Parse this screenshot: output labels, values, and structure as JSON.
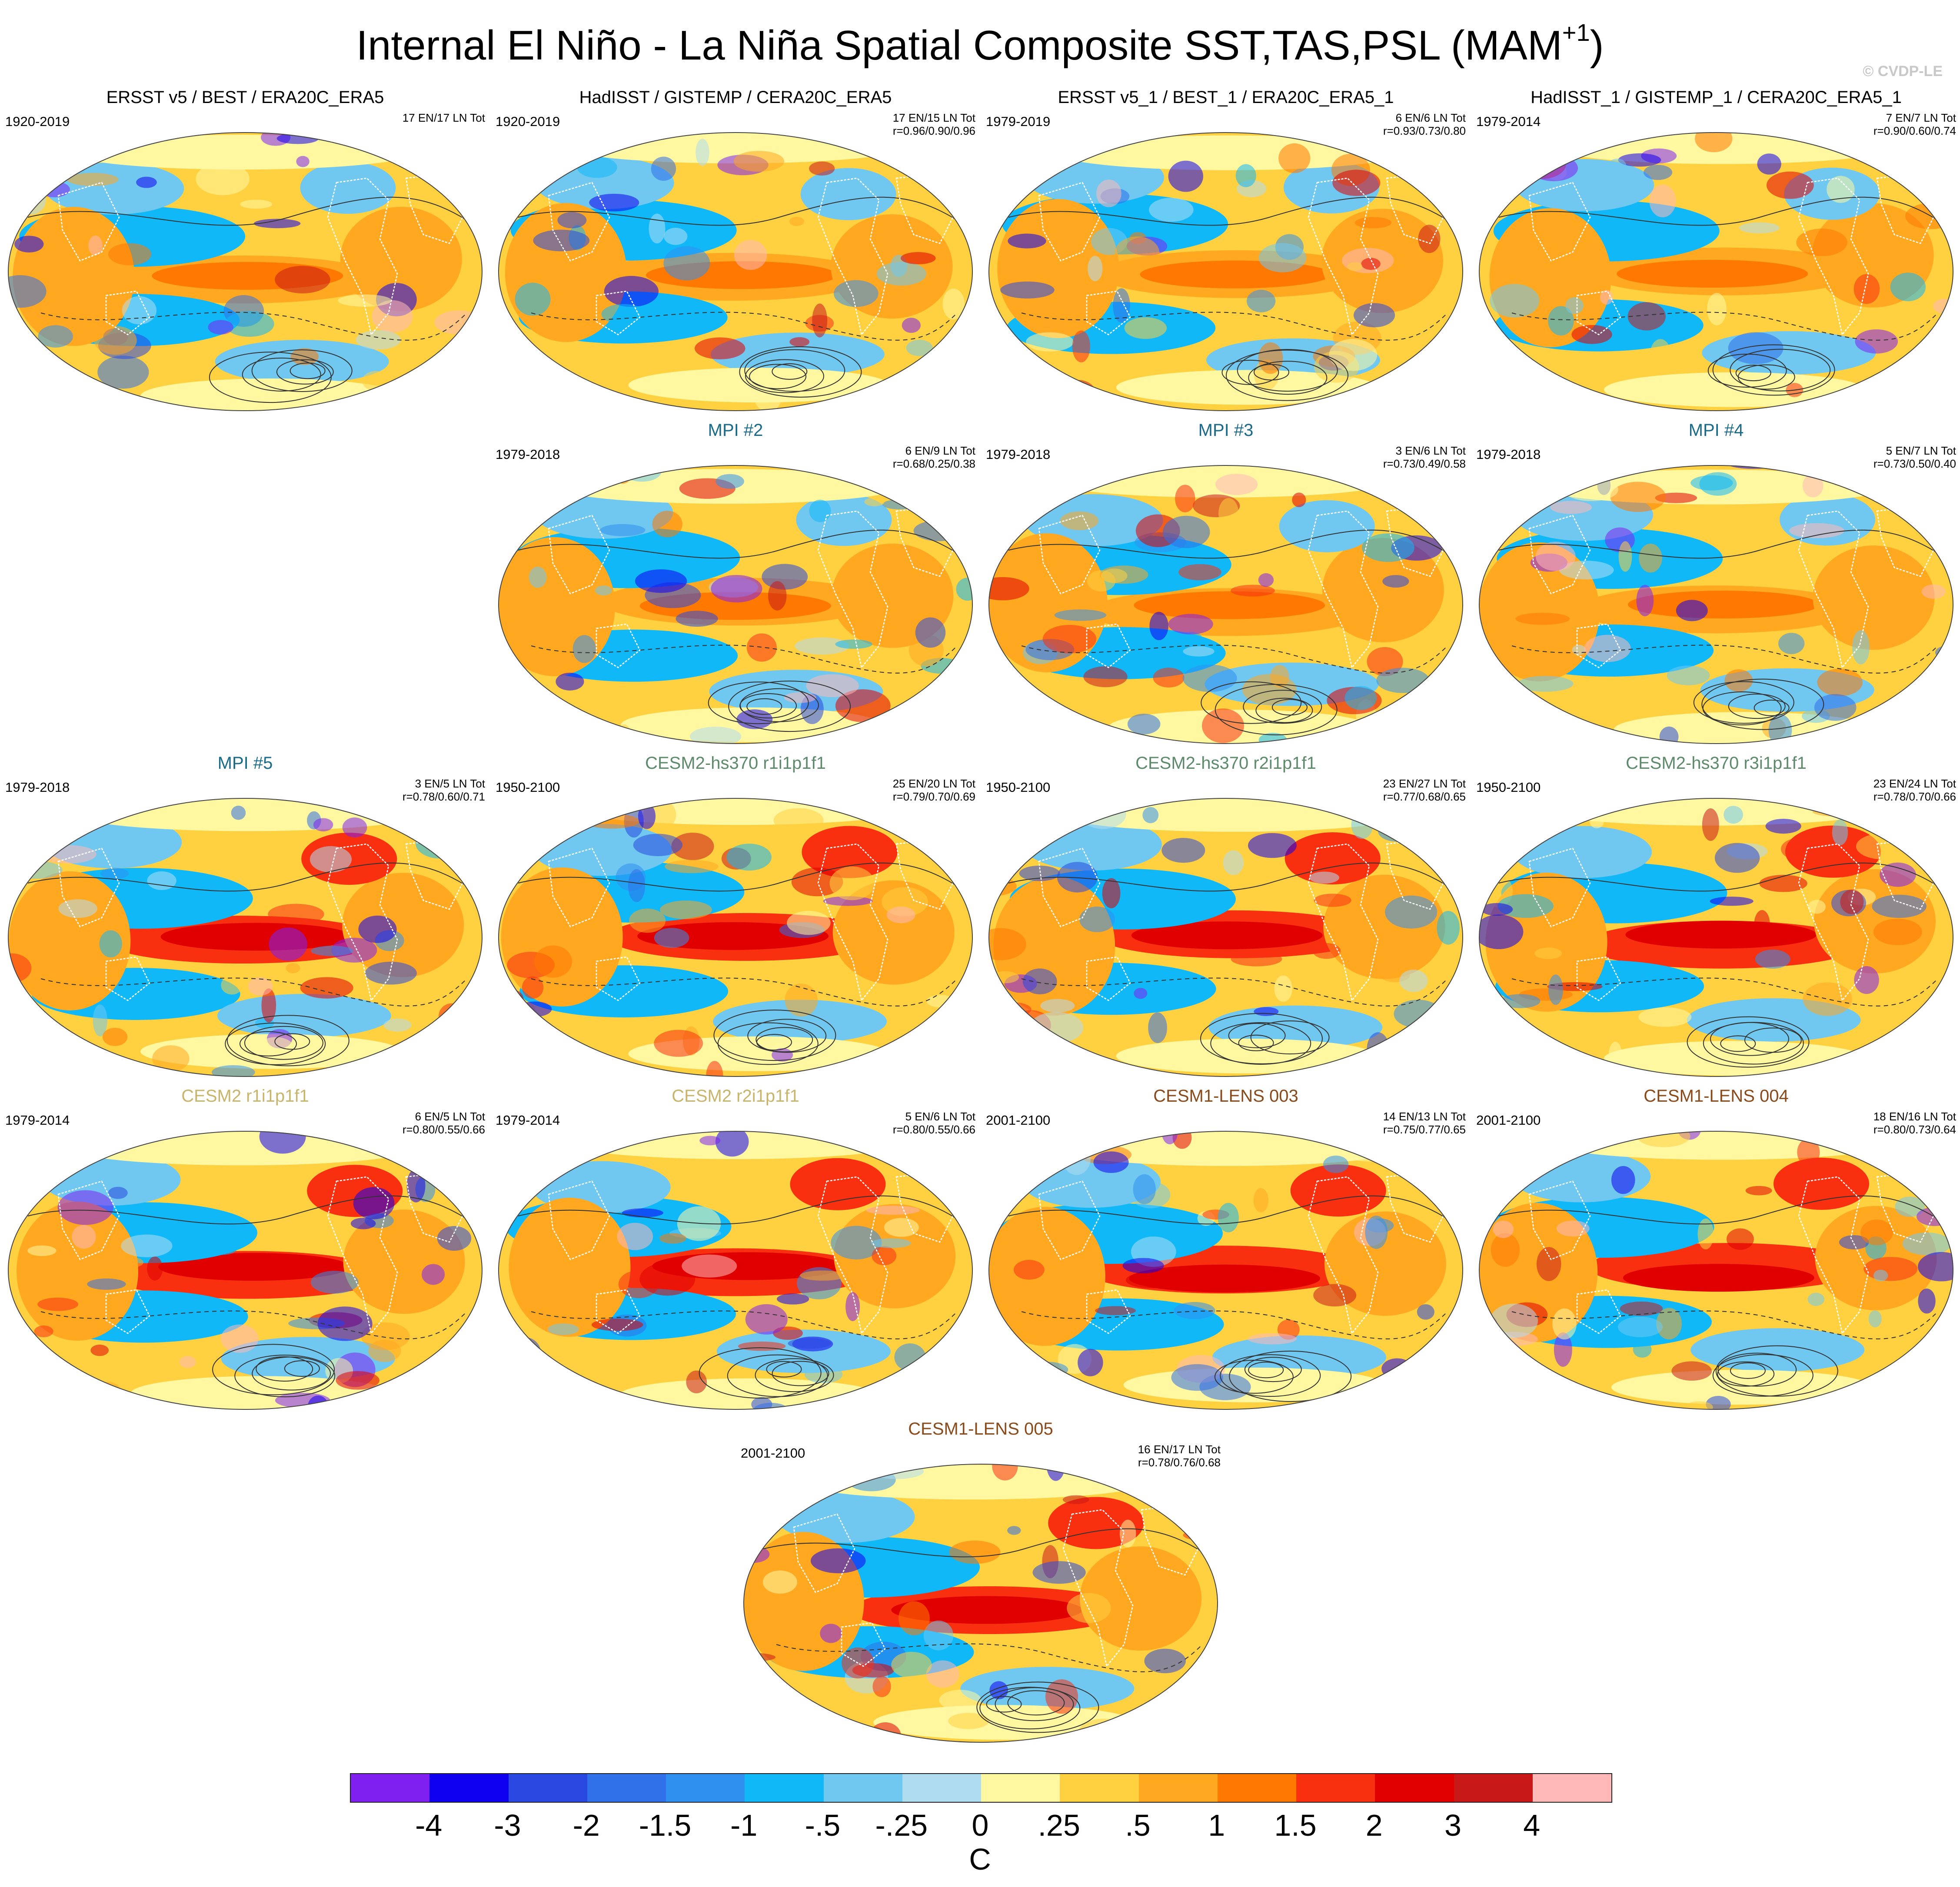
{
  "header": {
    "title": "Internal El Niño - La Niña Spatial Composite SST,TAS,PSL (MAM",
    "title_superscript": "+1",
    "title_close": ")",
    "watermark": "© CVDP-LE"
  },
  "panels": [
    {
      "title": "ERSST v5 / BEST / ERA20C_ERA5",
      "title_color": "#000000",
      "years": "1920-2019",
      "count": "17 EN/17 LN Tot",
      "corr": ""
    },
    {
      "title": "HadISST / GISTEMP / CERA20C_ERA5",
      "title_color": "#000000",
      "years": "1920-2019",
      "count": "17 EN/15 LN Tot",
      "corr": "r=0.96/0.90/0.96"
    },
    {
      "title": "ERSST v5_1 / BEST_1 / ERA20C_ERA5_1",
      "title_color": "#000000",
      "years": "1979-2019",
      "count": "6 EN/6 LN Tot",
      "corr": "r=0.93/0.73/0.80"
    },
    {
      "title": "HadISST_1 / GISTEMP_1 / CERA20C_ERA5_1",
      "title_color": "#000000",
      "years": "1979-2014",
      "count": "7 EN/7 LN Tot",
      "corr": "r=0.90/0.60/0.74"
    },
    {
      "title": "MPI #2",
      "title_color": "#1a6a8a",
      "years": "1979-2018",
      "count": "6 EN/9 LN Tot",
      "corr": "r=0.68/0.25/0.38"
    },
    {
      "title": "MPI #3",
      "title_color": "#1a6a8a",
      "years": "1979-2018",
      "count": "3 EN/6 LN Tot",
      "corr": "r=0.73/0.49/0.58"
    },
    {
      "title": "MPI #4",
      "title_color": "#1a6a8a",
      "years": "1979-2018",
      "count": "5 EN/7 LN Tot",
      "corr": "r=0.73/0.50/0.40"
    },
    {
      "title": "MPI #5",
      "title_color": "#1a6a8a",
      "years": "1979-2018",
      "count": "3 EN/5 LN Tot",
      "corr": "r=0.78/0.60/0.71"
    },
    {
      "title": "CESM2-hs370 r1i1p1f1",
      "title_color": "#5c8a6a",
      "years": "1950-2100",
      "count": "25 EN/20 LN Tot",
      "corr": "r=0.79/0.70/0.69"
    },
    {
      "title": "CESM2-hs370 r2i1p1f1",
      "title_color": "#5c8a6a",
      "years": "1950-2100",
      "count": "23 EN/27 LN Tot",
      "corr": "r=0.77/0.68/0.65"
    },
    {
      "title": "CESM2-hs370 r3i1p1f1",
      "title_color": "#5c8a6a",
      "years": "1950-2100",
      "count": "23 EN/24 LN Tot",
      "corr": "r=0.78/0.70/0.66"
    },
    {
      "title": "CESM2 r1i1p1f1",
      "title_color": "#c8b46a",
      "years": "1979-2014",
      "count": "6 EN/5 LN Tot",
      "corr": "r=0.80/0.55/0.66"
    },
    {
      "title": "CESM2 r2i1p1f1",
      "title_color": "#c8b46a",
      "years": "1979-2014",
      "count": "5 EN/6 LN Tot",
      "corr": "r=0.80/0.55/0.66"
    },
    {
      "title": "CESM1-LENS 003",
      "title_color": "#8a4a1a",
      "years": "2001-2100",
      "count": "14 EN/13 LN Tot",
      "corr": "r=0.75/0.77/0.65"
    },
    {
      "title": "CESM1-LENS 004",
      "title_color": "#8a4a1a",
      "years": "2001-2100",
      "count": "18 EN/16 LN Tot",
      "corr": "r=0.80/0.73/0.64"
    },
    {
      "title": "CESM1-LENS 005",
      "title_color": "#8a4a1a",
      "years": "2001-2100",
      "count": "16 EN/17 LN Tot",
      "corr": "r=0.78/0.76/0.68"
    }
  ],
  "colorbar": {
    "colors": [
      "#8020f0",
      "#1000f0",
      "#2848e0",
      "#3070e8",
      "#3090f0",
      "#10b8f8",
      "#70c8f0",
      "#b0dcf0",
      "#fff8a0",
      "#ffd040",
      "#ffa820",
      "#ff7800",
      "#f83010",
      "#e00000",
      "#c81818",
      "#ffb8b8"
    ],
    "labels": [
      "-4",
      "-3",
      "-2",
      "-1.5",
      "-1",
      "-.5",
      "-.25",
      "0",
      ".25",
      ".5",
      "1",
      "1.5",
      "2",
      "3",
      "4"
    ],
    "unit": "C"
  }
}
